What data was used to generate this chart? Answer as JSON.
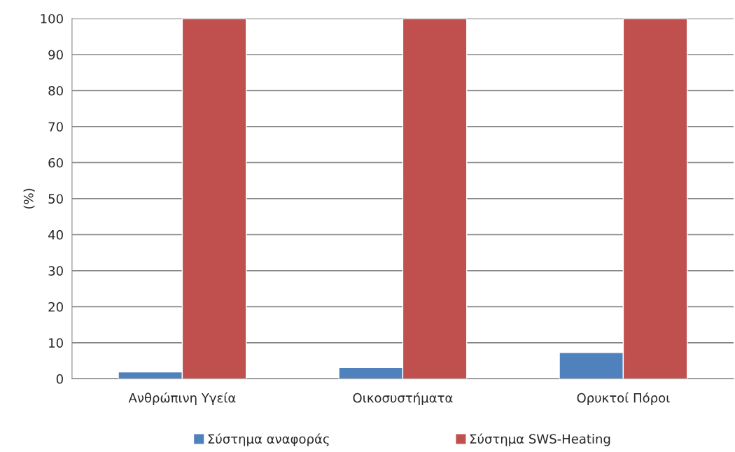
{
  "chart_data": {
    "type": "bar",
    "ylabel": "(%)",
    "categories": [
      "Ανθρώπινη Υγεία",
      "Οικοσυστήματα",
      "Ορυκτοί Πόροι"
    ],
    "series": [
      {
        "name": "Σύστημα αναφοράς",
        "color": "#4f81bd",
        "values": [
          1.9,
          3.1,
          7.3
        ]
      },
      {
        "name": "Σύστημα SWS-Heating",
        "color": "#c0504d",
        "values": [
          100,
          100,
          100
        ]
      }
    ],
    "ylim": [
      0,
      100
    ],
    "yticks": [
      0,
      10,
      20,
      30,
      40,
      50,
      60,
      70,
      80,
      90,
      100
    ],
    "grid": "y",
    "legend": "bottom"
  }
}
